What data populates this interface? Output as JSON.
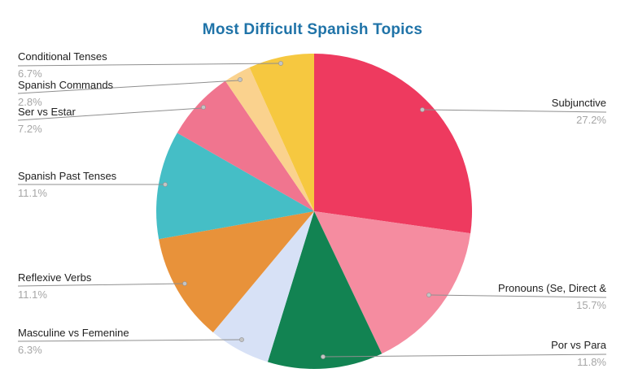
{
  "chart_data": {
    "type": "pie",
    "title": "Most Difficult Spanish Topics",
    "title_color": "#1f73a8",
    "legend_position": "outside-callout-labels",
    "start_angle_deg": 0,
    "direction": "clockwise-from-top",
    "callout": {
      "line_color": "#8f8f8f",
      "dot_color": "#c4c4c4",
      "label_color": "#212121",
      "pct_color": "#a6a6a6"
    },
    "slices": [
      {
        "name": "Subjunctive",
        "value": 27.2,
        "pct_label": "27.2%",
        "color": "#ee3a5f"
      },
      {
        "name": "Pronouns (Se, Direct &",
        "value": 15.7,
        "pct_label": "15.7%",
        "color": "#f58ca0"
      },
      {
        "name": "Por vs Para",
        "value": 11.8,
        "pct_label": "11.8%",
        "color": "#128352"
      },
      {
        "name": "Masculine vs Femenine",
        "value": 6.3,
        "pct_label": "6.3%",
        "color": "#d7e1f6"
      },
      {
        "name": "Reflexive Verbs",
        "value": 11.1,
        "pct_label": "11.1%",
        "color": "#e8923a"
      },
      {
        "name": "Spanish Past Tenses",
        "value": 11.1,
        "pct_label": "11.1%",
        "color": "#45bec6"
      },
      {
        "name": "Ser vs Estar",
        "value": 7.2,
        "pct_label": "7.2%",
        "color": "#f0758f"
      },
      {
        "name": "Spanish Commands",
        "value": 2.8,
        "pct_label": "2.8%",
        "color": "#fad28e"
      },
      {
        "name": "Conditional Tenses",
        "value": 6.7,
        "pct_label": "6.7%",
        "color": "#f6c840"
      }
    ]
  }
}
